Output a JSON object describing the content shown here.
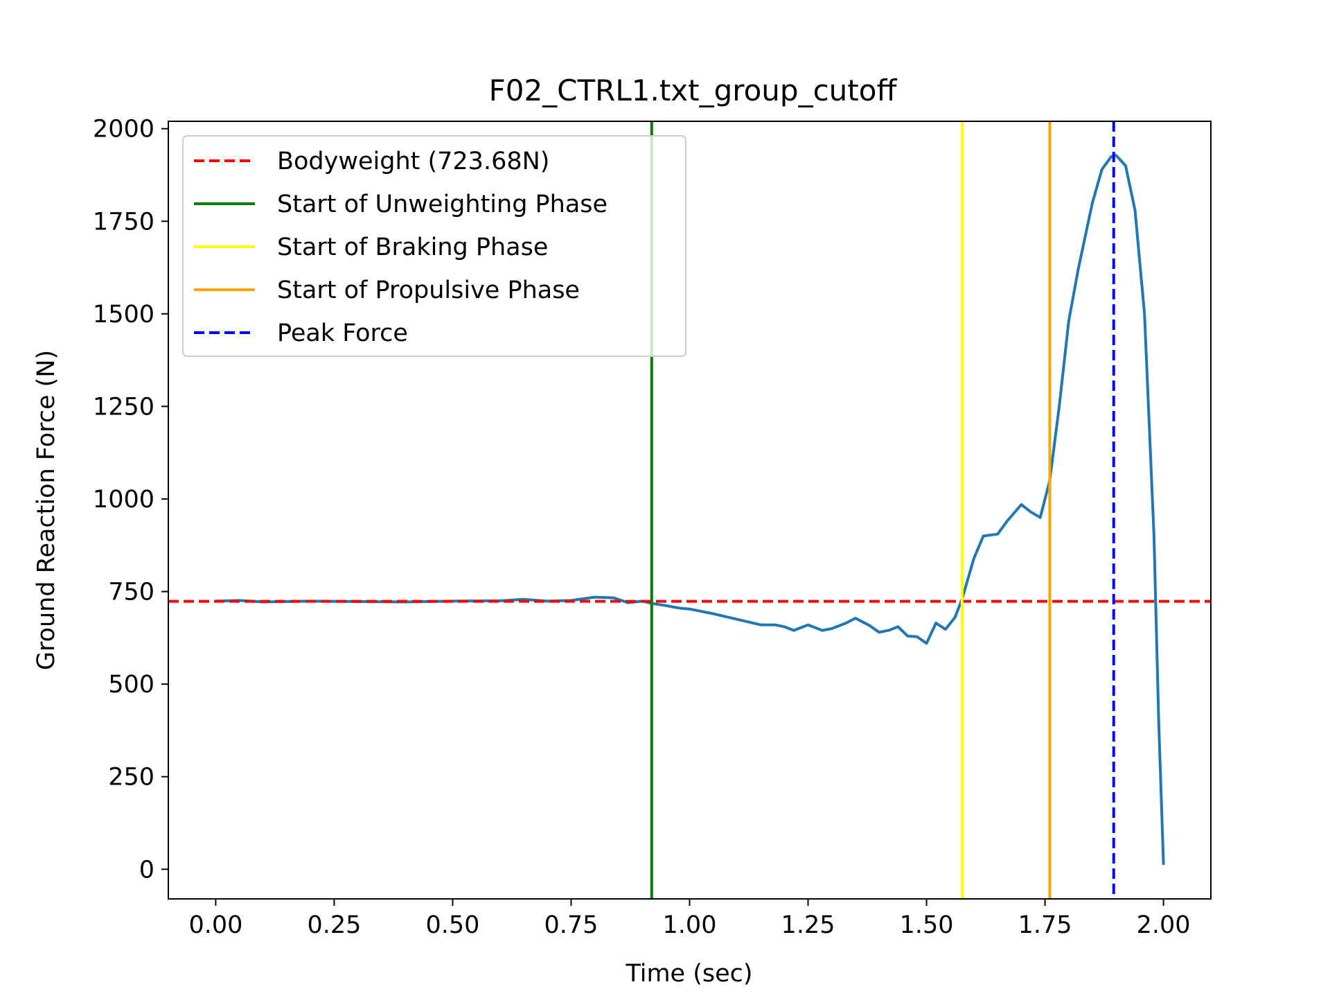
{
  "chart_data": {
    "type": "line",
    "title": "F02_CTRL1.txt_group_cutoff",
    "xlabel": "Time (sec)",
    "ylabel": "Ground Reaction Force (N)",
    "xlim": [
      -0.1,
      2.1
    ],
    "ylim": [
      -80,
      2020
    ],
    "xticks": [
      0.0,
      0.25,
      0.5,
      0.75,
      1.0,
      1.25,
      1.5,
      1.75,
      2.0
    ],
    "xtick_labels": [
      "0.00",
      "0.25",
      "0.50",
      "0.75",
      "1.00",
      "1.25",
      "1.50",
      "1.75",
      "2.00"
    ],
    "yticks": [
      0,
      250,
      500,
      750,
      1000,
      1250,
      1500,
      1750,
      2000
    ],
    "ytick_labels": [
      "0",
      "250",
      "500",
      "750",
      "1000",
      "1250",
      "1500",
      "1750",
      "2000"
    ],
    "grid": false,
    "legend_position": "upper-left",
    "series": [
      {
        "color": "#1f77b4",
        "x": [
          0.0,
          0.05,
          0.1,
          0.2,
          0.3,
          0.4,
          0.5,
          0.6,
          0.65,
          0.7,
          0.75,
          0.8,
          0.84,
          0.87,
          0.9,
          0.92,
          0.95,
          0.98,
          1.0,
          1.05,
          1.1,
          1.15,
          1.18,
          1.2,
          1.22,
          1.25,
          1.28,
          1.3,
          1.33,
          1.35,
          1.38,
          1.4,
          1.42,
          1.44,
          1.46,
          1.48,
          1.5,
          1.52,
          1.54,
          1.56,
          1.575,
          1.6,
          1.62,
          1.65,
          1.67,
          1.7,
          1.72,
          1.74,
          1.76,
          1.78,
          1.8,
          1.82,
          1.85,
          1.87,
          1.89,
          1.9,
          1.92,
          1.94,
          1.96,
          1.98,
          1.99,
          2.0
        ],
        "y": [
          724,
          726,
          722,
          724,
          723,
          722,
          724,
          725,
          729,
          724,
          726,
          735,
          733,
          720,
          724,
          718,
          712,
          705,
          703,
          690,
          675,
          660,
          660,
          655,
          645,
          660,
          645,
          650,
          665,
          678,
          658,
          640,
          645,
          655,
          630,
          628,
          610,
          665,
          648,
          680,
          730,
          840,
          900,
          905,
          940,
          985,
          965,
          950,
          1050,
          1250,
          1480,
          1620,
          1800,
          1890,
          1925,
          1928,
          1900,
          1780,
          1500,
          900,
          400,
          15
        ]
      }
    ],
    "reference_lines": [
      {
        "orientation": "horizontal",
        "value": 723.68,
        "color": "#ff0000",
        "style": "dashed",
        "label": "Bodyweight (723.68N)"
      },
      {
        "orientation": "vertical",
        "value": 0.92,
        "color": "#008000",
        "style": "solid",
        "label": "Start of Unweighting Phase"
      },
      {
        "orientation": "vertical",
        "value": 1.575,
        "color": "#ffff00",
        "style": "solid",
        "label": "Start of Braking Phase"
      },
      {
        "orientation": "vertical",
        "value": 1.76,
        "color": "#ffa500",
        "style": "solid",
        "label": "Start of Propulsive Phase"
      },
      {
        "orientation": "vertical",
        "value": 1.895,
        "color": "#0000ff",
        "style": "dashed",
        "label": "Peak Force"
      }
    ]
  }
}
